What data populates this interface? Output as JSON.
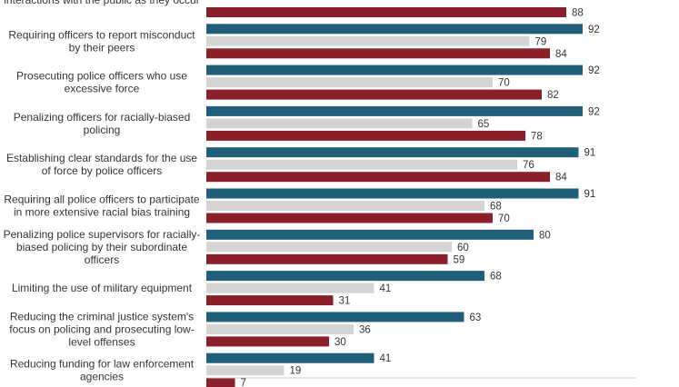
{
  "chart_data": {
    "type": "bar",
    "orientation": "horizontal",
    "colors": [
      "#1f5f7a",
      "#d3d3d3",
      "#8b1f2b"
    ],
    "xlim": [
      0,
      100
    ],
    "categories": [
      [
        "interactions with the public as they occur"
      ],
      [
        "Requiring officers to report misconduct",
        "by their peers"
      ],
      [
        "Prosecuting police officers who use",
        "excessive force"
      ],
      [
        "Penalizing officers for racially-biased",
        "policing"
      ],
      [
        "Establishing clear standards for the use",
        "of force by police officers"
      ],
      [
        "Requiring all police officers to participate",
        "in more extensive racial bias training"
      ],
      [
        "Penalizing police supervisors for racially-",
        "biased policing by their subordinate",
        "officers"
      ],
      [
        "Limiting the use of military equipment"
      ],
      [
        "Reducing the criminal justice system's",
        "focus on policing and prosecuting low-",
        "level offenses"
      ],
      [
        "Reducing funding for law enforcement",
        "agencies"
      ]
    ],
    "series": [
      {
        "values": [
          null,
          92,
          92,
          92,
          91,
          91,
          80,
          68,
          63,
          41
        ]
      },
      {
        "values": [
          null,
          79,
          70,
          65,
          76,
          68,
          60,
          41,
          36,
          19
        ]
      },
      {
        "values": [
          88,
          84,
          82,
          78,
          84,
          70,
          59,
          31,
          30,
          7
        ]
      }
    ]
  }
}
